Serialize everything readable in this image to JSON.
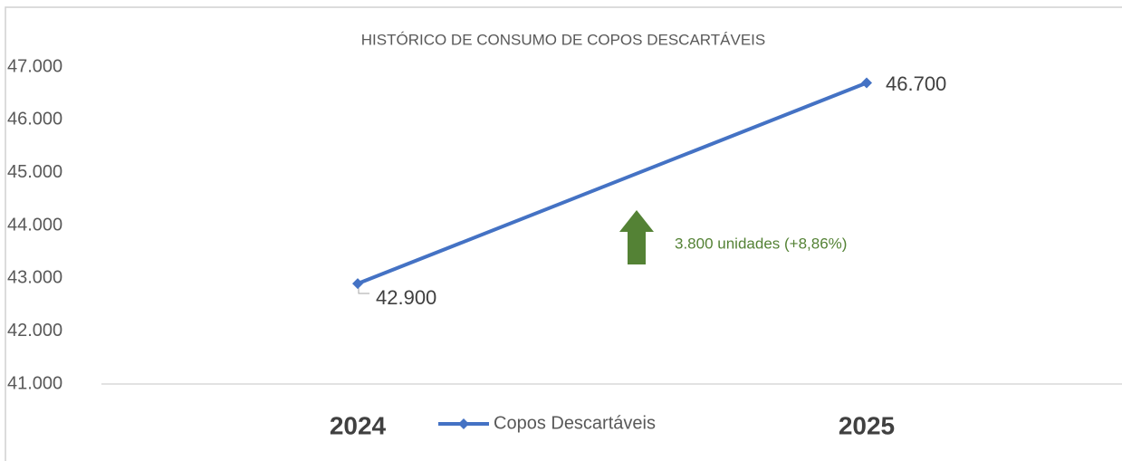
{
  "chart_data": {
    "type": "line",
    "title": "HISTÓRICO DE CONSUMO DE COPOS DESCARTÁVEIS",
    "categories": [
      "2024",
      "2025"
    ],
    "series": [
      {
        "name": "Copos Descartáveis",
        "color": "#4472c4",
        "values": [
          42900,
          46700
        ],
        "value_labels": [
          "42.900",
          "46.700"
        ]
      }
    ],
    "ylim": [
      41000,
      47000
    ],
    "yticks": [
      {
        "value": 41000,
        "label": "41.000"
      },
      {
        "value": 42000,
        "label": "42.000"
      },
      {
        "value": 43000,
        "label": "43.000"
      },
      {
        "value": 44000,
        "label": "44.000"
      },
      {
        "value": 45000,
        "label": "45.000"
      },
      {
        "value": 46000,
        "label": "46.000"
      },
      {
        "value": 47000,
        "label": "47.000"
      }
    ],
    "annotations": [
      {
        "text": "3.800 unidades (+8,86%)",
        "color": "#548235"
      }
    ],
    "grid": false
  }
}
